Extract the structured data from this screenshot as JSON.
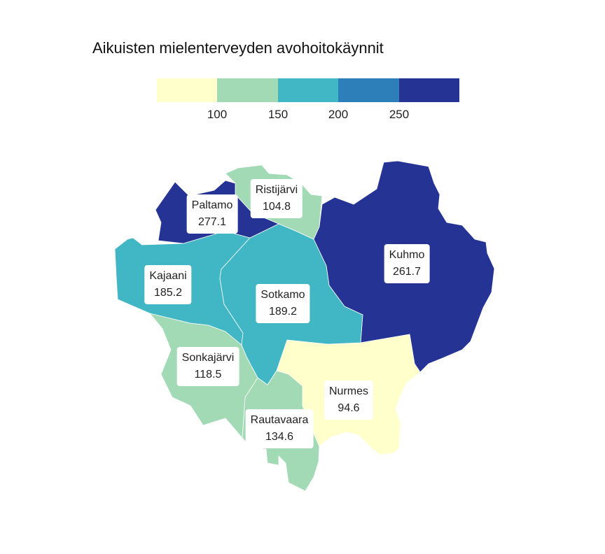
{
  "title": "Aikuisten mielenterveyden avohoitokäynnit",
  "legend": {
    "colors": [
      "#ffffcc",
      "#a1dab4",
      "#41b6c4",
      "#2c7fb8",
      "#253494"
    ],
    "ticks": [
      "100",
      "150",
      "200",
      "250"
    ]
  },
  "regions": [
    {
      "id": "paltamo",
      "name": "Paltamo",
      "value": "277.1",
      "color": "#253494"
    },
    {
      "id": "ristijarvi",
      "name": "Ristijärvi",
      "value": "104.8",
      "color": "#a1dab4"
    },
    {
      "id": "kuhmo",
      "name": "Kuhmo",
      "value": "261.7",
      "color": "#253494"
    },
    {
      "id": "kajaani",
      "name": "Kajaani",
      "value": "185.2",
      "color": "#41b6c4"
    },
    {
      "id": "sotkamo",
      "name": "Sotkamo",
      "value": "189.2",
      "color": "#41b6c4"
    },
    {
      "id": "sonkajarvi",
      "name": "Sonkajärvi",
      "value": "118.5",
      "color": "#a1dab4"
    },
    {
      "id": "nurmes",
      "name": "Nurmes",
      "value": "94.6",
      "color": "#ffffcc"
    },
    {
      "id": "rautavaara",
      "name": "Rautavaara",
      "value": "134.6",
      "color": "#a1dab4"
    }
  ]
}
